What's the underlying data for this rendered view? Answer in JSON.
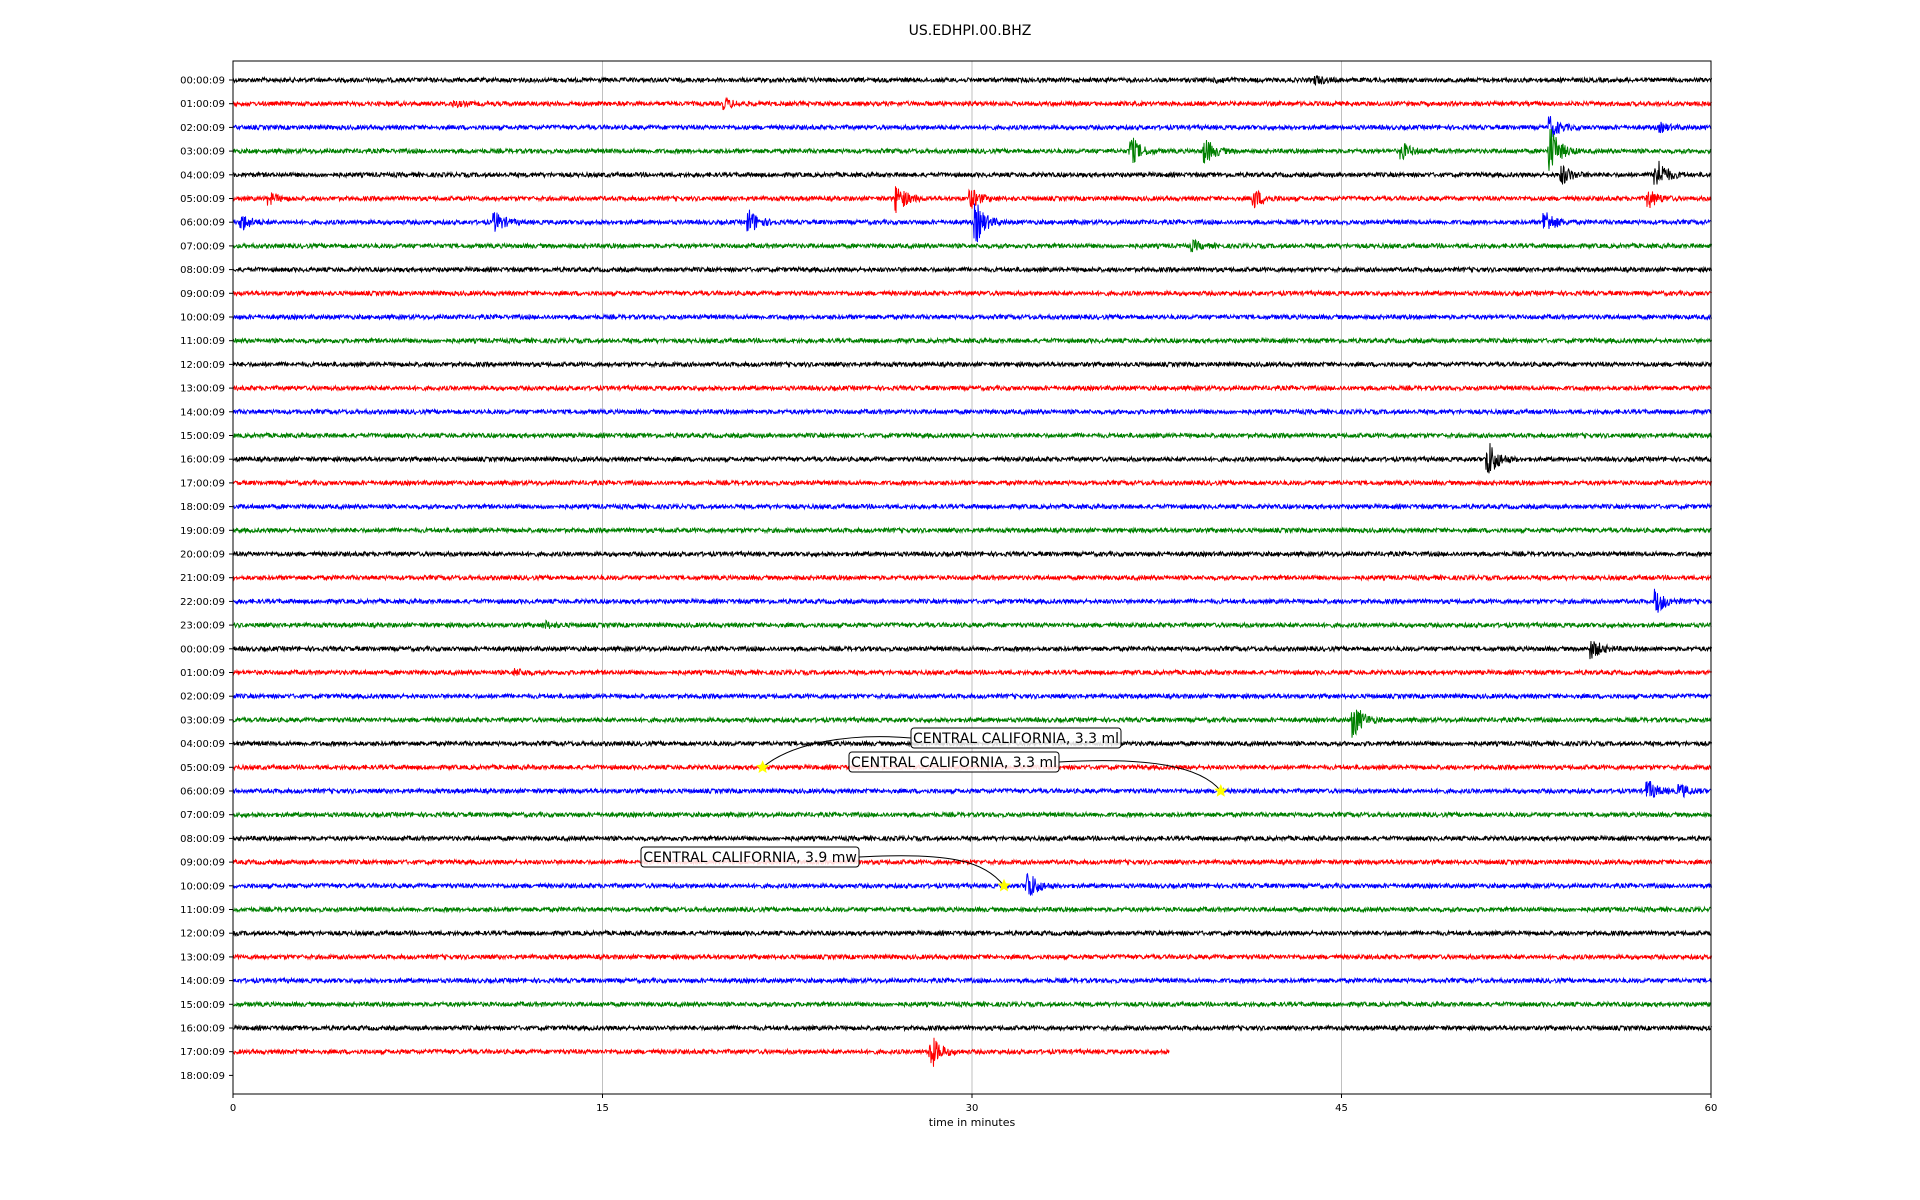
{
  "chart_data": {
    "type": "line",
    "title": "US.EDHPI.00.BHZ",
    "xlabel": "time in minutes",
    "ylabel": "",
    "xlim": [
      0,
      60
    ],
    "x_ticks": [
      "0",
      "15",
      "30",
      "45",
      "60"
    ],
    "grid": "vertical lines at 15, 30, 45",
    "trace_colors": [
      "#000000",
      "#ff0000",
      "#0000ff",
      "#008000"
    ],
    "row_labels": [
      "00:00:09",
      "01:00:09",
      "02:00:09",
      "03:00:09",
      "04:00:09",
      "05:00:09",
      "06:00:09",
      "07:00:09",
      "08:00:09",
      "09:00:09",
      "10:00:09",
      "11:00:09",
      "12:00:09",
      "13:00:09",
      "14:00:09",
      "15:00:09",
      "16:00:09",
      "17:00:09",
      "18:00:09",
      "19:00:09",
      "20:00:09",
      "21:00:09",
      "22:00:09",
      "23:00:09",
      "00:00:09",
      "01:00:09",
      "02:00:09",
      "03:00:09",
      "04:00:09",
      "05:00:09",
      "06:00:09",
      "07:00:09",
      "08:00:09",
      "09:00:09",
      "10:00:09",
      "11:00:09",
      "12:00:09",
      "13:00:09",
      "14:00:09",
      "15:00:09",
      "16:00:09",
      "17:00:09",
      "18:00:09"
    ],
    "trace_end_minutes": [
      60,
      60,
      60,
      60,
      60,
      60,
      60,
      60,
      60,
      60,
      60,
      60,
      60,
      60,
      60,
      60,
      60,
      60,
      60,
      60,
      60,
      60,
      60,
      60,
      60,
      60,
      60,
      60,
      60,
      60,
      60,
      60,
      60,
      60,
      60,
      60,
      60,
      60,
      60,
      60,
      60,
      38,
      0
    ],
    "bursts": [
      {
        "row": 0,
        "minute": 44,
        "amp": 0.25
      },
      {
        "row": 0,
        "minute": 40,
        "amp": 0.15
      },
      {
        "row": 1,
        "minute": 20,
        "amp": 0.3
      },
      {
        "row": 1,
        "minute": 9,
        "amp": 0.15
      },
      {
        "row": 2,
        "minute": 53.5,
        "amp": 0.7
      },
      {
        "row": 2,
        "minute": 58,
        "amp": 0.25
      },
      {
        "row": 3,
        "minute": 36.5,
        "amp": 0.9
      },
      {
        "row": 3,
        "minute": 39.5,
        "amp": 0.8
      },
      {
        "row": 3,
        "minute": 47.5,
        "amp": 0.5
      },
      {
        "row": 3,
        "minute": 53.5,
        "amp": 1.6
      },
      {
        "row": 4,
        "minute": 54,
        "amp": 0.6
      },
      {
        "row": 4,
        "minute": 57.8,
        "amp": 1.2
      },
      {
        "row": 5,
        "minute": 27,
        "amp": 0.9
      },
      {
        "row": 5,
        "minute": 30,
        "amp": 0.6
      },
      {
        "row": 5,
        "minute": 41.5,
        "amp": 0.6
      },
      {
        "row": 5,
        "minute": 57.5,
        "amp": 0.6
      },
      {
        "row": 5,
        "minute": 1.5,
        "amp": 0.35
      },
      {
        "row": 6,
        "minute": 21,
        "amp": 0.8
      },
      {
        "row": 6,
        "minute": 30.2,
        "amp": 1.3
      },
      {
        "row": 6,
        "minute": 53.3,
        "amp": 0.8
      },
      {
        "row": 6,
        "minute": 0.4,
        "amp": 0.5
      },
      {
        "row": 6,
        "minute": 10.7,
        "amp": 0.6
      },
      {
        "row": 7,
        "minute": 39,
        "amp": 0.3
      },
      {
        "row": 16,
        "minute": 51,
        "amp": 1.2
      },
      {
        "row": 22,
        "minute": 57.8,
        "amp": 0.8
      },
      {
        "row": 23,
        "minute": 12.7,
        "amp": 0.2
      },
      {
        "row": 24,
        "minute": 55.2,
        "amp": 0.6
      },
      {
        "row": 25,
        "minute": 11.5,
        "amp": 0.2
      },
      {
        "row": 27,
        "minute": 45.5,
        "amp": 1.2
      },
      {
        "row": 30,
        "minute": 57.5,
        "amp": 0.6
      },
      {
        "row": 30,
        "minute": 58.8,
        "amp": 0.4
      },
      {
        "row": 34,
        "minute": 32.3,
        "amp": 1.0
      },
      {
        "row": 41,
        "minute": 28.4,
        "amp": 1.0
      }
    ],
    "events": [
      {
        "label": "CENTRAL CALIFORNIA, 3.3 ml",
        "row": 29,
        "minute": 21.5
      },
      {
        "label": "CENTRAL CALIFORNIA, 3.3 ml",
        "row": 30,
        "minute": 40.1
      },
      {
        "label": "CENTRAL CALIFORNIA, 3.9 mw",
        "row": 34,
        "minute": 31.3
      }
    ],
    "event_marker_color": "#ffff00"
  }
}
